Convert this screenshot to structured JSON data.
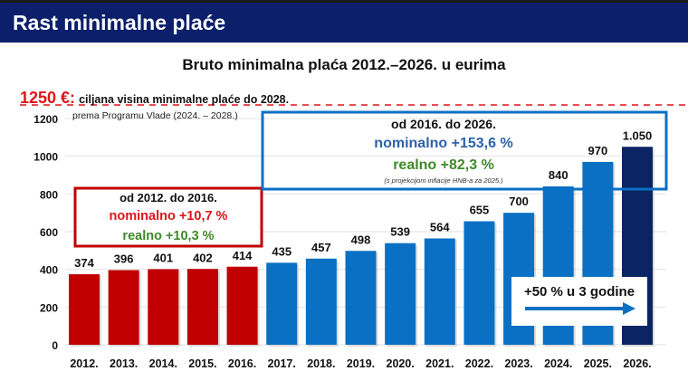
{
  "header": {
    "title": "Rast minimalne plaće"
  },
  "colors": {
    "header": "#0b1f6b",
    "red": "#c00000",
    "blue": "#0a70c4",
    "navy": "#0b2463",
    "green": "#3f8a2a",
    "nominal_blue": "#2e62a8",
    "target_red": "#e0131a"
  },
  "chart_data": {
    "type": "bar",
    "title": "Bruto minimalna plaća 2012.–2026. u eurima",
    "categories": [
      "2012.",
      "2013.",
      "2014.",
      "2015.",
      "2016.",
      "2017.",
      "2018.",
      "2019.",
      "2020.",
      "2021.",
      "2022.",
      "2023.",
      "2024.",
      "2025.",
      "2026."
    ],
    "values": [
      374,
      396,
      401,
      402,
      414,
      435,
      457,
      498,
      539,
      564,
      655,
      700,
      840,
      970,
      1050
    ],
    "data_labels": [
      "374",
      "396",
      "401",
      "402",
      "414",
      "435",
      "457",
      "498",
      "539",
      "564",
      "655",
      "700",
      "840",
      "970",
      "1.050"
    ],
    "bar_colors": [
      "#c00000",
      "#c00000",
      "#c00000",
      "#c00000",
      "#c00000",
      "#0a70c4",
      "#0a70c4",
      "#0a70c4",
      "#0a70c4",
      "#0a70c4",
      "#0a70c4",
      "#0a70c4",
      "#0a70c4",
      "#0a70c4",
      "#0b2463"
    ],
    "ylim": [
      0,
      1200
    ],
    "yticks": [
      "0",
      "200",
      "400",
      "600",
      "800",
      "1000",
      "1200"
    ],
    "grid": true,
    "target": {
      "value": 1250,
      "label": "1250 €:",
      "text": "ciljana visina minimalne plaće do 2028.",
      "note": "prema Programu Vlade (2024. – 2028.)"
    }
  },
  "annotations": {
    "period1": {
      "title": "od 2012. do 2016.",
      "nominal": "nominalno +10,7 %",
      "real": "realno +10,3 %"
    },
    "period2": {
      "title": "od 2016. do 2026.",
      "nominal": "nominalno +153,6 %",
      "real": "realno +82,3 %",
      "note": "(s projekcijom inflacije HNB-a za 2025.)"
    },
    "growth": {
      "label": "+50 % u 3 godine"
    }
  }
}
